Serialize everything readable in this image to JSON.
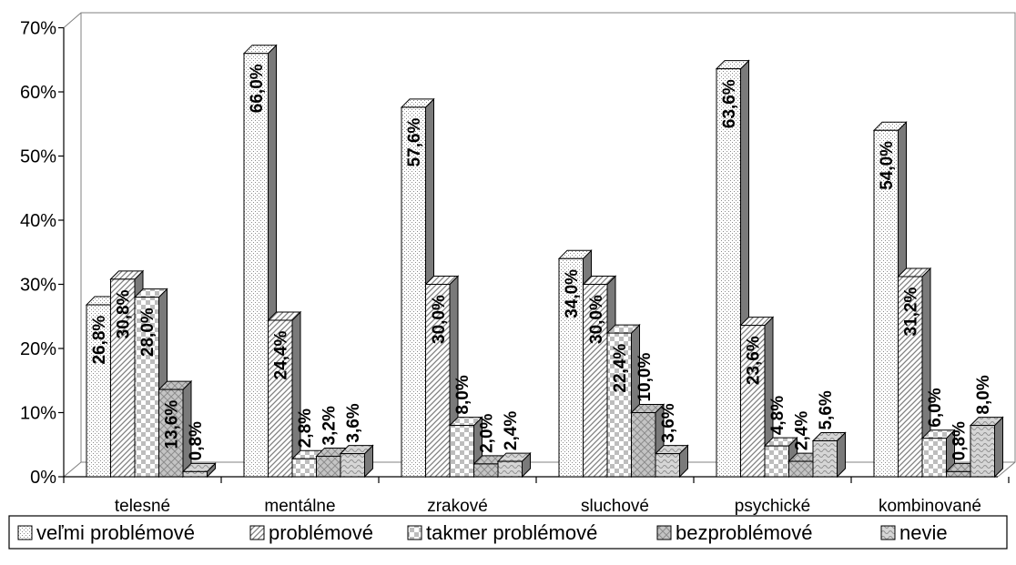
{
  "chart_data": {
    "type": "bar",
    "categories": [
      "telesné",
      "mentálne",
      "zrakové",
      "sluchové",
      "psychické",
      "kombinované"
    ],
    "series": [
      {
        "name": "veľmi problémové",
        "values": [
          26.8,
          66.0,
          57.6,
          34.0,
          63.6,
          54.0
        ],
        "labels": [
          "26,8%",
          "66,0%",
          "57,6%",
          "34,0%",
          "63,6%",
          "54,0%"
        ]
      },
      {
        "name": "problémové",
        "values": [
          30.8,
          24.4,
          30.0,
          30.0,
          23.6,
          31.2
        ],
        "labels": [
          "30,8%",
          "24,4%",
          "30,0%",
          "30,0%",
          "23,6%",
          "31,2%"
        ]
      },
      {
        "name": "takmer problémové",
        "values": [
          28.0,
          2.8,
          8.0,
          22.4,
          4.8,
          6.0
        ],
        "labels": [
          "28,0%",
          "2,8%",
          "8,0%",
          "22,4%",
          "4,8%",
          "6,0%"
        ]
      },
      {
        "name": "bezproblémové",
        "values": [
          13.6,
          3.2,
          2.0,
          10.0,
          2.4,
          0.8
        ],
        "labels": [
          "13,6%",
          "3,2%",
          "2,0%",
          "10,0%",
          "2,4%",
          "0,8%"
        ]
      },
      {
        "name": "nevie",
        "values": [
          0.8,
          3.6,
          2.4,
          3.6,
          5.6,
          8.0
        ],
        "labels": [
          "0,8%",
          "3,6%",
          "2,4%",
          "3,6%",
          "5,6%",
          "8,0%"
        ]
      }
    ],
    "yticks": [
      "0%",
      "10%",
      "20%",
      "30%",
      "40%",
      "50%",
      "60%",
      "70%"
    ],
    "ylim": [
      0,
      70
    ],
    "grid": false,
    "legend_position": "bottom",
    "bar_style": "3d"
  }
}
